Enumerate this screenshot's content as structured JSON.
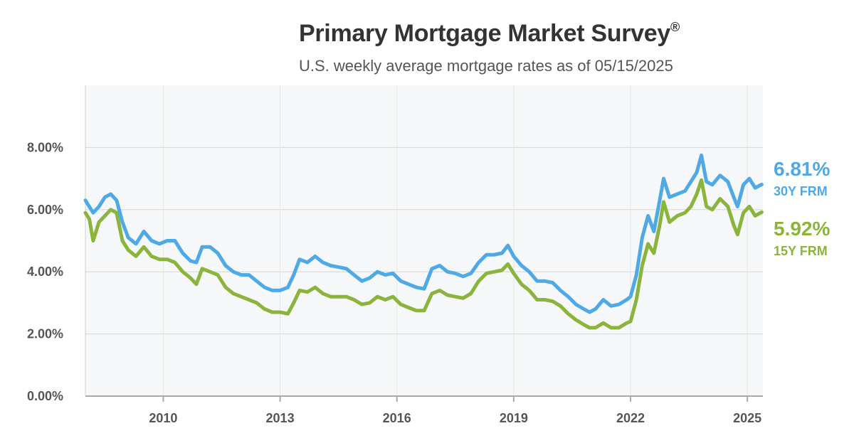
{
  "header": {
    "title": "Primary Mortgage Market Survey",
    "title_mark": "®",
    "subtitle": "U.S. weekly average mortgage rates as of 05/15/2025"
  },
  "colors": {
    "rate30": "#4ea9e6",
    "rate15": "#8bb43c",
    "grid": "#d6d6d6",
    "axis": "#aaaaaa",
    "plot_bg": "#f6f7f8"
  },
  "chart_data": {
    "type": "line",
    "title": "Primary Mortgage Market Survey®",
    "subtitle": "U.S. weekly average mortgage rates as of 05/15/2025",
    "xlabel": "",
    "ylabel": "",
    "xlim": [
      2008.0,
      2025.4
    ],
    "ylim": [
      0,
      10
    ],
    "y_ticks": [
      0,
      2,
      4,
      6,
      8
    ],
    "y_tick_labels": [
      "0.00%",
      "2.00%",
      "4.00%",
      "6.00%",
      "8.00%"
    ],
    "x_ticks": [
      2010,
      2013,
      2016,
      2019,
      2022,
      2025
    ],
    "x_tick_labels": [
      "2010",
      "2013",
      "2016",
      "2019",
      "2022",
      "2025"
    ],
    "grid": true,
    "series": [
      {
        "name": "30Y FRM",
        "label_value": "6.81%",
        "label_name": "30Y FRM",
        "points": [
          [
            2008.0,
            6.3
          ],
          [
            2008.2,
            5.9
          ],
          [
            2008.35,
            6.1
          ],
          [
            2008.5,
            6.4
          ],
          [
            2008.65,
            6.5
          ],
          [
            2008.8,
            6.3
          ],
          [
            2008.95,
            5.6
          ],
          [
            2009.1,
            5.1
          ],
          [
            2009.3,
            4.9
          ],
          [
            2009.5,
            5.3
          ],
          [
            2009.7,
            5.0
          ],
          [
            2009.9,
            4.9
          ],
          [
            2010.1,
            5.0
          ],
          [
            2010.3,
            5.0
          ],
          [
            2010.5,
            4.6
          ],
          [
            2010.7,
            4.35
          ],
          [
            2010.85,
            4.3
          ],
          [
            2011.0,
            4.8
          ],
          [
            2011.2,
            4.8
          ],
          [
            2011.4,
            4.6
          ],
          [
            2011.6,
            4.2
          ],
          [
            2011.8,
            4.0
          ],
          [
            2012.0,
            3.9
          ],
          [
            2012.2,
            3.9
          ],
          [
            2012.4,
            3.7
          ],
          [
            2012.6,
            3.5
          ],
          [
            2012.8,
            3.4
          ],
          [
            2013.0,
            3.4
          ],
          [
            2013.2,
            3.5
          ],
          [
            2013.35,
            3.9
          ],
          [
            2013.5,
            4.4
          ],
          [
            2013.7,
            4.3
          ],
          [
            2013.9,
            4.5
          ],
          [
            2014.1,
            4.3
          ],
          [
            2014.3,
            4.2
          ],
          [
            2014.5,
            4.15
          ],
          [
            2014.7,
            4.1
          ],
          [
            2014.9,
            3.9
          ],
          [
            2015.1,
            3.7
          ],
          [
            2015.3,
            3.8
          ],
          [
            2015.5,
            4.0
          ],
          [
            2015.7,
            3.9
          ],
          [
            2015.9,
            3.95
          ],
          [
            2016.1,
            3.7
          ],
          [
            2016.3,
            3.6
          ],
          [
            2016.5,
            3.5
          ],
          [
            2016.7,
            3.45
          ],
          [
            2016.9,
            4.1
          ],
          [
            2017.1,
            4.2
          ],
          [
            2017.3,
            4.0
          ],
          [
            2017.5,
            3.95
          ],
          [
            2017.7,
            3.85
          ],
          [
            2017.9,
            3.95
          ],
          [
            2018.1,
            4.3
          ],
          [
            2018.3,
            4.55
          ],
          [
            2018.5,
            4.55
          ],
          [
            2018.7,
            4.6
          ],
          [
            2018.85,
            4.85
          ],
          [
            2019.0,
            4.5
          ],
          [
            2019.2,
            4.2
          ],
          [
            2019.4,
            4.0
          ],
          [
            2019.6,
            3.7
          ],
          [
            2019.8,
            3.7
          ],
          [
            2020.0,
            3.65
          ],
          [
            2020.2,
            3.4
          ],
          [
            2020.4,
            3.2
          ],
          [
            2020.6,
            2.95
          ],
          [
            2020.8,
            2.8
          ],
          [
            2020.95,
            2.7
          ],
          [
            2021.1,
            2.8
          ],
          [
            2021.3,
            3.1
          ],
          [
            2021.5,
            2.9
          ],
          [
            2021.7,
            2.95
          ],
          [
            2021.9,
            3.1
          ],
          [
            2022.0,
            3.2
          ],
          [
            2022.15,
            3.9
          ],
          [
            2022.3,
            5.1
          ],
          [
            2022.45,
            5.8
          ],
          [
            2022.6,
            5.3
          ],
          [
            2022.75,
            6.3
          ],
          [
            2022.85,
            7.0
          ],
          [
            2023.0,
            6.4
          ],
          [
            2023.2,
            6.5
          ],
          [
            2023.4,
            6.6
          ],
          [
            2023.55,
            6.9
          ],
          [
            2023.7,
            7.2
          ],
          [
            2023.82,
            7.75
          ],
          [
            2023.95,
            6.9
          ],
          [
            2024.1,
            6.8
          ],
          [
            2024.3,
            7.1
          ],
          [
            2024.5,
            6.9
          ],
          [
            2024.65,
            6.4
          ],
          [
            2024.75,
            6.1
          ],
          [
            2024.9,
            6.8
          ],
          [
            2025.05,
            7.0
          ],
          [
            2025.2,
            6.7
          ],
          [
            2025.37,
            6.81
          ]
        ]
      },
      {
        "name": "15Y FRM",
        "label_value": "5.92%",
        "label_name": "15Y FRM",
        "points": [
          [
            2008.0,
            5.9
          ],
          [
            2008.1,
            5.7
          ],
          [
            2008.2,
            5.0
          ],
          [
            2008.35,
            5.6
          ],
          [
            2008.5,
            5.8
          ],
          [
            2008.65,
            6.0
          ],
          [
            2008.8,
            5.9
          ],
          [
            2008.95,
            5.0
          ],
          [
            2009.1,
            4.7
          ],
          [
            2009.3,
            4.5
          ],
          [
            2009.5,
            4.8
          ],
          [
            2009.7,
            4.5
          ],
          [
            2009.9,
            4.4
          ],
          [
            2010.1,
            4.4
          ],
          [
            2010.3,
            4.3
          ],
          [
            2010.5,
            4.0
          ],
          [
            2010.7,
            3.8
          ],
          [
            2010.85,
            3.6
          ],
          [
            2011.0,
            4.1
          ],
          [
            2011.2,
            4.0
          ],
          [
            2011.4,
            3.9
          ],
          [
            2011.6,
            3.5
          ],
          [
            2011.8,
            3.3
          ],
          [
            2012.0,
            3.2
          ],
          [
            2012.2,
            3.1
          ],
          [
            2012.4,
            3.0
          ],
          [
            2012.6,
            2.8
          ],
          [
            2012.8,
            2.7
          ],
          [
            2013.0,
            2.7
          ],
          [
            2013.2,
            2.65
          ],
          [
            2013.35,
            3.0
          ],
          [
            2013.5,
            3.4
          ],
          [
            2013.7,
            3.35
          ],
          [
            2013.9,
            3.5
          ],
          [
            2014.1,
            3.3
          ],
          [
            2014.3,
            3.2
          ],
          [
            2014.5,
            3.2
          ],
          [
            2014.7,
            3.2
          ],
          [
            2014.9,
            3.1
          ],
          [
            2015.1,
            2.95
          ],
          [
            2015.3,
            3.0
          ],
          [
            2015.5,
            3.2
          ],
          [
            2015.7,
            3.1
          ],
          [
            2015.9,
            3.2
          ],
          [
            2016.1,
            2.95
          ],
          [
            2016.3,
            2.85
          ],
          [
            2016.5,
            2.75
          ],
          [
            2016.7,
            2.75
          ],
          [
            2016.9,
            3.3
          ],
          [
            2017.1,
            3.4
          ],
          [
            2017.3,
            3.25
          ],
          [
            2017.5,
            3.2
          ],
          [
            2017.7,
            3.15
          ],
          [
            2017.9,
            3.3
          ],
          [
            2018.1,
            3.7
          ],
          [
            2018.3,
            3.95
          ],
          [
            2018.5,
            4.0
          ],
          [
            2018.7,
            4.05
          ],
          [
            2018.85,
            4.25
          ],
          [
            2019.0,
            3.95
          ],
          [
            2019.2,
            3.6
          ],
          [
            2019.4,
            3.4
          ],
          [
            2019.6,
            3.1
          ],
          [
            2019.8,
            3.1
          ],
          [
            2020.0,
            3.05
          ],
          [
            2020.2,
            2.9
          ],
          [
            2020.4,
            2.65
          ],
          [
            2020.6,
            2.45
          ],
          [
            2020.8,
            2.3
          ],
          [
            2020.95,
            2.2
          ],
          [
            2021.1,
            2.2
          ],
          [
            2021.3,
            2.35
          ],
          [
            2021.5,
            2.2
          ],
          [
            2021.7,
            2.2
          ],
          [
            2021.9,
            2.35
          ],
          [
            2022.0,
            2.4
          ],
          [
            2022.15,
            3.1
          ],
          [
            2022.3,
            4.2
          ],
          [
            2022.45,
            4.9
          ],
          [
            2022.6,
            4.6
          ],
          [
            2022.75,
            5.5
          ],
          [
            2022.85,
            6.25
          ],
          [
            2023.0,
            5.6
          ],
          [
            2023.2,
            5.8
          ],
          [
            2023.4,
            5.9
          ],
          [
            2023.55,
            6.1
          ],
          [
            2023.7,
            6.5
          ],
          [
            2023.82,
            6.95
          ],
          [
            2023.95,
            6.1
          ],
          [
            2024.1,
            6.0
          ],
          [
            2024.3,
            6.35
          ],
          [
            2024.5,
            6.1
          ],
          [
            2024.65,
            5.5
          ],
          [
            2024.75,
            5.2
          ],
          [
            2024.9,
            5.9
          ],
          [
            2025.05,
            6.1
          ],
          [
            2025.2,
            5.8
          ],
          [
            2025.37,
            5.92
          ]
        ]
      }
    ]
  }
}
